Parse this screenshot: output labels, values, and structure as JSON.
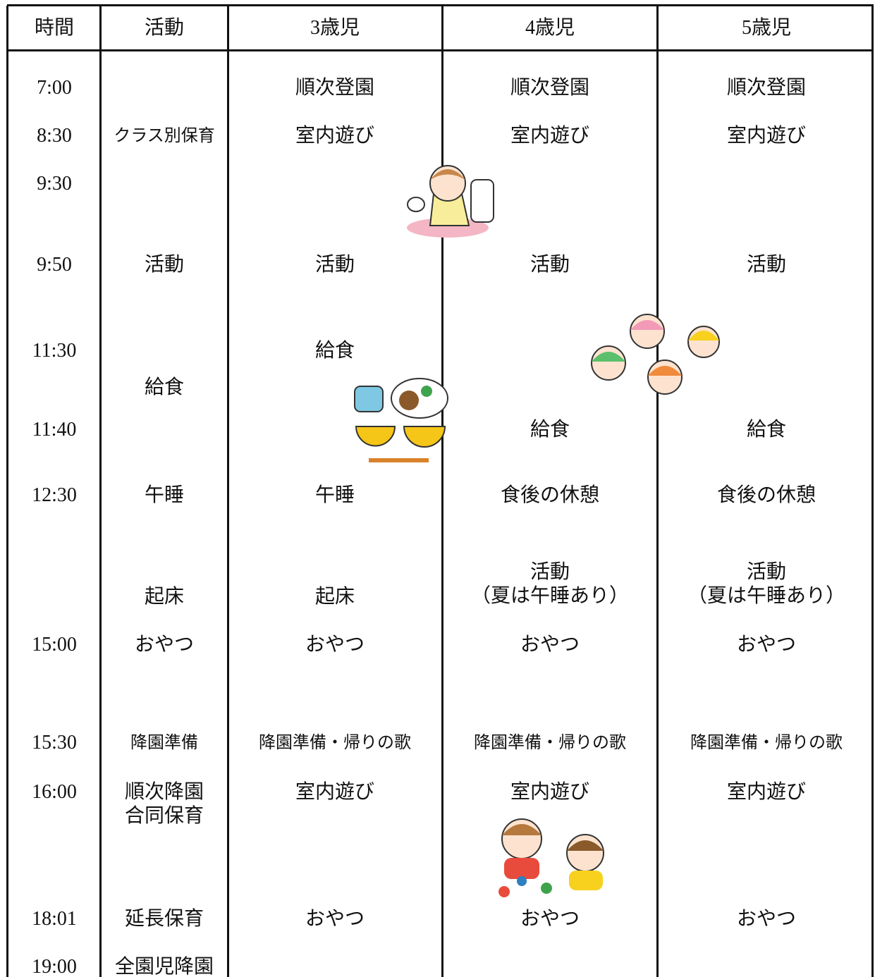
{
  "table": {
    "header": [
      "時間",
      "活動",
      "3歳児",
      "4歳児",
      "5歳児"
    ],
    "rows": [
      {
        "time": "7:00",
        "age3": "順次登園",
        "age4": "順次登園",
        "age5": "順次登園"
      },
      {
        "time": "8:30",
        "activity": "クラス別保育",
        "age3": "室内遊び",
        "age4": "室内遊び",
        "age5": "室内遊び"
      },
      {
        "time": "9:30"
      },
      {
        "time": "9:50",
        "activity": "活動",
        "age3": "活動",
        "age4": "活動",
        "age5": "活動"
      },
      {
        "time": "11:30",
        "age3": "給食"
      },
      {
        "activity": "給食"
      },
      {
        "time": "11:40",
        "age4": "給食",
        "age5": "給食"
      },
      {
        "time": "12:30",
        "activity": "午睡",
        "age3": "午睡",
        "age4": "食後の休憩",
        "age5": "食後の休憩"
      },
      {
        "activity": "起床",
        "age3": "起床",
        "age4": "活動\n（夏は午睡あり）",
        "age5": "活動\n（夏は午睡あり）"
      },
      {
        "time": "15:00",
        "activity": "おやつ",
        "age3": "おやつ",
        "age4": "おやつ",
        "age5": "おやつ"
      },
      {
        "time": "15:30",
        "activity": "降園準備",
        "age3": "降園準備・帰りの歌",
        "age4": "降園準備・帰りの歌",
        "age5": "降園準備・帰りの歌"
      },
      {
        "time": "16:00",
        "activity": "順次降園\n合同保育",
        "age3": "室内遊び",
        "age4": "室内遊び",
        "age5": "室内遊び"
      },
      {
        "time": "18:01",
        "activity": "延長保育",
        "age3": "おやつ",
        "age4": "おやつ",
        "age5": "おやつ"
      },
      {
        "time": "19:00",
        "activity": "全園児降園"
      }
    ]
  }
}
